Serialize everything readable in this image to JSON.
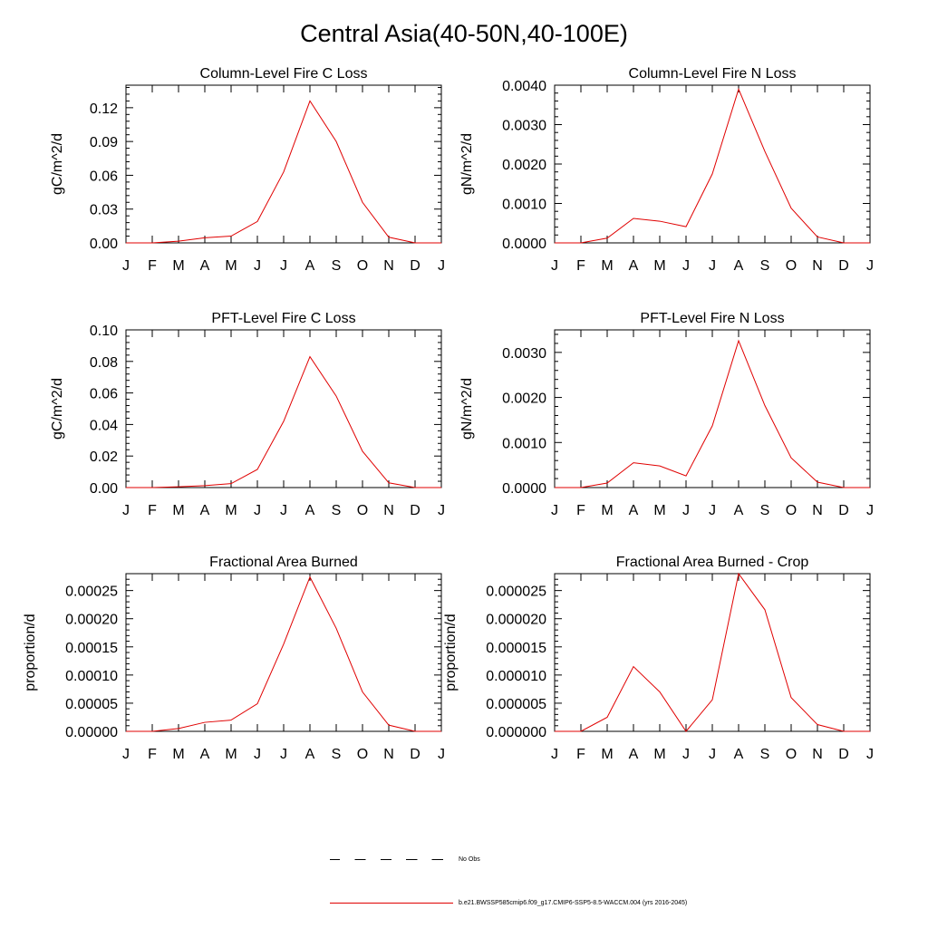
{
  "page": {
    "title": "Central Asia(40-50N,40-100E)"
  },
  "colors": {
    "model_line": "#e00000",
    "axis": "#000000"
  },
  "legend": {
    "items": [
      {
        "label": "No Obs",
        "style": "dashed",
        "color": "#000000"
      },
      {
        "label": "b.e21.BWSSP585cmip6.f09_g17.CMIP6-SSP5-8.5-WACCM.004 (yrs 2016-2045)",
        "style": "solid",
        "color": "#e00000"
      }
    ]
  },
  "chart_data": [
    {
      "type": "line",
      "title": "Column-Level Fire C Loss",
      "ylabel": "gC/m^2/d",
      "xlabel": "",
      "categories": [
        "J",
        "F",
        "M",
        "A",
        "M",
        "J",
        "J",
        "A",
        "S",
        "O",
        "N",
        "D",
        "J"
      ],
      "ylim": [
        0,
        0.14
      ],
      "yticks": [
        0.0,
        0.03,
        0.06,
        0.09,
        0.12
      ],
      "ytick_labels": [
        "0.00",
        "0.03",
        "0.06",
        "0.09",
        "0.12"
      ],
      "series": [
        {
          "name": "b.e21.BWSSP585cmip6.f09_g17.CMIP6-SSP5-8.5-WACCM.004 (yrs 2016-2045)",
          "values": [
            0.0,
            0.0,
            0.0015,
            0.0045,
            0.006,
            0.019,
            0.063,
            0.126,
            0.09,
            0.036,
            0.005,
            0.0,
            0.0
          ]
        }
      ]
    },
    {
      "type": "line",
      "title": "Column-Level Fire N Loss",
      "ylabel": "gN/m^2/d",
      "xlabel": "",
      "categories": [
        "J",
        "F",
        "M",
        "A",
        "M",
        "J",
        "J",
        "A",
        "S",
        "O",
        "N",
        "D",
        "J"
      ],
      "ylim": [
        0,
        0.004
      ],
      "yticks": [
        0.0,
        0.001,
        0.002,
        0.003,
        0.004
      ],
      "ytick_labels": [
        "0.0000",
        "0.0010",
        "0.0020",
        "0.0030",
        "0.0040"
      ],
      "series": [
        {
          "name": "b.e21.BWSSP585cmip6.f09_g17.CMIP6-SSP5-8.5-WACCM.004 (yrs 2016-2045)",
          "values": [
            0.0,
            0.0,
            0.00012,
            0.00062,
            0.00055,
            0.00041,
            0.00175,
            0.0039,
            0.00232,
            0.00088,
            0.00015,
            0.0,
            0.0
          ]
        }
      ]
    },
    {
      "type": "line",
      "title": "PFT-Level Fire C Loss",
      "ylabel": "gC/m^2/d",
      "xlabel": "",
      "categories": [
        "J",
        "F",
        "M",
        "A",
        "M",
        "J",
        "J",
        "A",
        "S",
        "O",
        "N",
        "D",
        "J"
      ],
      "ylim": [
        0,
        0.1
      ],
      "yticks": [
        0.0,
        0.02,
        0.04,
        0.06,
        0.08,
        0.1
      ],
      "ytick_labels": [
        "0.00",
        "0.02",
        "0.04",
        "0.06",
        "0.08",
        "0.10"
      ],
      "series": [
        {
          "name": "b.e21.BWSSP585cmip6.f09_g17.CMIP6-SSP5-8.5-WACCM.004 (yrs 2016-2045)",
          "values": [
            0.0,
            0.0,
            0.0005,
            0.0012,
            0.0025,
            0.0115,
            0.042,
            0.083,
            0.058,
            0.023,
            0.003,
            0.0,
            0.0
          ]
        }
      ]
    },
    {
      "type": "line",
      "title": "PFT-Level Fire N Loss",
      "ylabel": "gN/m^2/d",
      "xlabel": "",
      "categories": [
        "J",
        "F",
        "M",
        "A",
        "M",
        "J",
        "J",
        "A",
        "S",
        "O",
        "N",
        "D",
        "J"
      ],
      "ylim": [
        0,
        0.0035
      ],
      "yticks": [
        0.0,
        0.001,
        0.002,
        0.003
      ],
      "ytick_labels": [
        "0.0000",
        "0.0010",
        "0.0020",
        "0.0030"
      ],
      "series": [
        {
          "name": "b.e21.BWSSP585cmip6.f09_g17.CMIP6-SSP5-8.5-WACCM.004 (yrs 2016-2045)",
          "values": [
            0.0,
            0.0,
            0.0001,
            0.00055,
            0.00048,
            0.00026,
            0.00137,
            0.00326,
            0.00182,
            0.00066,
            0.00012,
            0.0,
            0.0
          ]
        }
      ]
    },
    {
      "type": "line",
      "title": "Fractional Area Burned",
      "ylabel": "proportion/d",
      "xlabel": "",
      "categories": [
        "J",
        "F",
        "M",
        "A",
        "M",
        "J",
        "J",
        "A",
        "S",
        "O",
        "N",
        "D",
        "J"
      ],
      "ylim": [
        0,
        0.00028
      ],
      "yticks": [
        0.0,
        5e-05,
        0.0001,
        0.00015,
        0.0002,
        0.00025
      ],
      "ytick_labels": [
        "0.00000",
        "0.00005",
        "0.00010",
        "0.00015",
        "0.00020",
        "0.00025"
      ],
      "series": [
        {
          "name": "b.e21.BWSSP585cmip6.f09_g17.CMIP6-SSP5-8.5-WACCM.004 (yrs 2016-2045)",
          "values": [
            0.0,
            0.0,
            5e-06,
            1.6e-05,
            2e-05,
            4.9e-05,
            0.000155,
            0.000274,
            0.000183,
            7e-05,
            1.1e-05,
            0.0,
            0.0
          ]
        }
      ]
    },
    {
      "type": "line",
      "title": "Fractional Area Burned - Crop",
      "ylabel": "proportion/d",
      "xlabel": "",
      "categories": [
        "J",
        "F",
        "M",
        "A",
        "M",
        "J",
        "J",
        "A",
        "S",
        "O",
        "N",
        "D",
        "J"
      ],
      "ylim": [
        0,
        2.8e-05
      ],
      "yticks": [
        0.0,
        5e-06,
        1e-05,
        1.5e-05,
        2e-05,
        2.5e-05
      ],
      "ytick_labels": [
        "0.000000",
        "0.000005",
        "0.000010",
        "0.000015",
        "0.000020",
        "0.000025"
      ],
      "series": [
        {
          "name": "b.e21.BWSSP585cmip6.f09_g17.CMIP6-SSP5-8.5-WACCM.004 (yrs 2016-2045)",
          "values": [
            0.0,
            0.0,
            2.5e-06,
            1.15e-05,
            7e-06,
            0.0,
            5.6e-06,
            2.8e-05,
            2.16e-05,
            6e-06,
            1.2e-06,
            0.0,
            0.0
          ]
        }
      ]
    }
  ]
}
